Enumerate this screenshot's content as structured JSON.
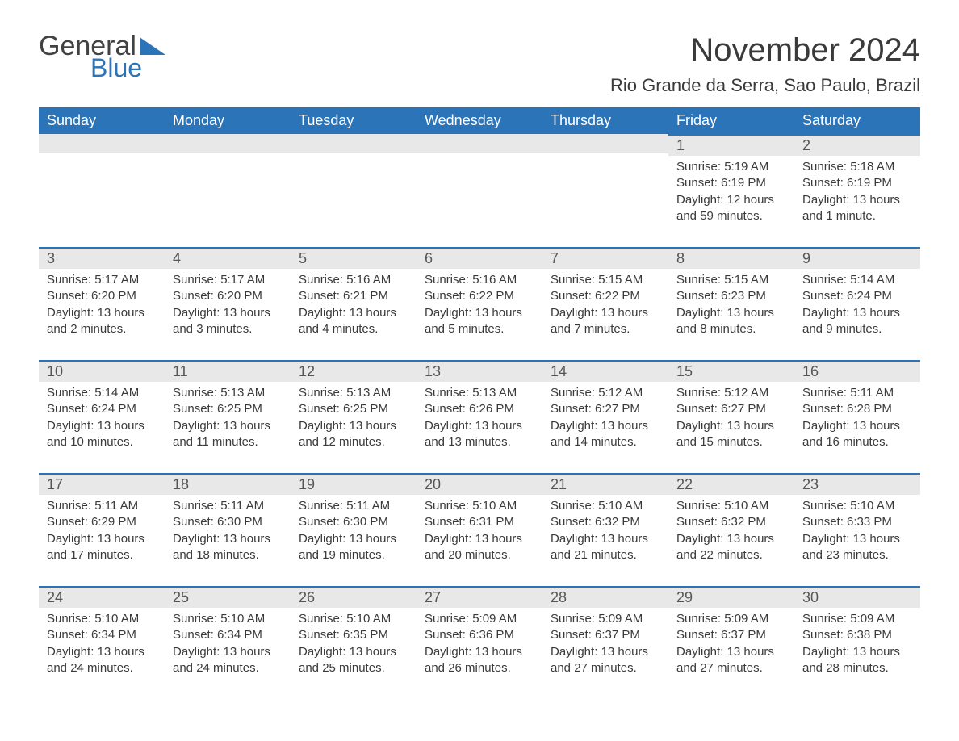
{
  "logo": {
    "text_general": "General",
    "text_blue": "Blue",
    "tri_color": "#2b74b8"
  },
  "title": "November 2024",
  "location": "Rio Grande da Serra, Sao Paulo, Brazil",
  "colors": {
    "header_bg": "#2b74b8",
    "header_text": "#ffffff",
    "daynum_bg": "#e8e8e8",
    "text": "#3a3a3a",
    "row_border": "#2b74b8"
  },
  "typography": {
    "title_fontsize": 40,
    "location_fontsize": 22,
    "dayheader_fontsize": 18,
    "daynum_fontsize": 18,
    "body_fontsize": 15
  },
  "calendar": {
    "type": "table",
    "columns": [
      "Sunday",
      "Monday",
      "Tuesday",
      "Wednesday",
      "Thursday",
      "Friday",
      "Saturday"
    ],
    "weeks": [
      [
        null,
        null,
        null,
        null,
        null,
        {
          "day": "1",
          "sunrise": "Sunrise: 5:19 AM",
          "sunset": "Sunset: 6:19 PM",
          "daylight": "Daylight: 12 hours and 59 minutes."
        },
        {
          "day": "2",
          "sunrise": "Sunrise: 5:18 AM",
          "sunset": "Sunset: 6:19 PM",
          "daylight": "Daylight: 13 hours and 1 minute."
        }
      ],
      [
        {
          "day": "3",
          "sunrise": "Sunrise: 5:17 AM",
          "sunset": "Sunset: 6:20 PM",
          "daylight": "Daylight: 13 hours and 2 minutes."
        },
        {
          "day": "4",
          "sunrise": "Sunrise: 5:17 AM",
          "sunset": "Sunset: 6:20 PM",
          "daylight": "Daylight: 13 hours and 3 minutes."
        },
        {
          "day": "5",
          "sunrise": "Sunrise: 5:16 AM",
          "sunset": "Sunset: 6:21 PM",
          "daylight": "Daylight: 13 hours and 4 minutes."
        },
        {
          "day": "6",
          "sunrise": "Sunrise: 5:16 AM",
          "sunset": "Sunset: 6:22 PM",
          "daylight": "Daylight: 13 hours and 5 minutes."
        },
        {
          "day": "7",
          "sunrise": "Sunrise: 5:15 AM",
          "sunset": "Sunset: 6:22 PM",
          "daylight": "Daylight: 13 hours and 7 minutes."
        },
        {
          "day": "8",
          "sunrise": "Sunrise: 5:15 AM",
          "sunset": "Sunset: 6:23 PM",
          "daylight": "Daylight: 13 hours and 8 minutes."
        },
        {
          "day": "9",
          "sunrise": "Sunrise: 5:14 AM",
          "sunset": "Sunset: 6:24 PM",
          "daylight": "Daylight: 13 hours and 9 minutes."
        }
      ],
      [
        {
          "day": "10",
          "sunrise": "Sunrise: 5:14 AM",
          "sunset": "Sunset: 6:24 PM",
          "daylight": "Daylight: 13 hours and 10 minutes."
        },
        {
          "day": "11",
          "sunrise": "Sunrise: 5:13 AM",
          "sunset": "Sunset: 6:25 PM",
          "daylight": "Daylight: 13 hours and 11 minutes."
        },
        {
          "day": "12",
          "sunrise": "Sunrise: 5:13 AM",
          "sunset": "Sunset: 6:25 PM",
          "daylight": "Daylight: 13 hours and 12 minutes."
        },
        {
          "day": "13",
          "sunrise": "Sunrise: 5:13 AM",
          "sunset": "Sunset: 6:26 PM",
          "daylight": "Daylight: 13 hours and 13 minutes."
        },
        {
          "day": "14",
          "sunrise": "Sunrise: 5:12 AM",
          "sunset": "Sunset: 6:27 PM",
          "daylight": "Daylight: 13 hours and 14 minutes."
        },
        {
          "day": "15",
          "sunrise": "Sunrise: 5:12 AM",
          "sunset": "Sunset: 6:27 PM",
          "daylight": "Daylight: 13 hours and 15 minutes."
        },
        {
          "day": "16",
          "sunrise": "Sunrise: 5:11 AM",
          "sunset": "Sunset: 6:28 PM",
          "daylight": "Daylight: 13 hours and 16 minutes."
        }
      ],
      [
        {
          "day": "17",
          "sunrise": "Sunrise: 5:11 AM",
          "sunset": "Sunset: 6:29 PM",
          "daylight": "Daylight: 13 hours and 17 minutes."
        },
        {
          "day": "18",
          "sunrise": "Sunrise: 5:11 AM",
          "sunset": "Sunset: 6:30 PM",
          "daylight": "Daylight: 13 hours and 18 minutes."
        },
        {
          "day": "19",
          "sunrise": "Sunrise: 5:11 AM",
          "sunset": "Sunset: 6:30 PM",
          "daylight": "Daylight: 13 hours and 19 minutes."
        },
        {
          "day": "20",
          "sunrise": "Sunrise: 5:10 AM",
          "sunset": "Sunset: 6:31 PM",
          "daylight": "Daylight: 13 hours and 20 minutes."
        },
        {
          "day": "21",
          "sunrise": "Sunrise: 5:10 AM",
          "sunset": "Sunset: 6:32 PM",
          "daylight": "Daylight: 13 hours and 21 minutes."
        },
        {
          "day": "22",
          "sunrise": "Sunrise: 5:10 AM",
          "sunset": "Sunset: 6:32 PM",
          "daylight": "Daylight: 13 hours and 22 minutes."
        },
        {
          "day": "23",
          "sunrise": "Sunrise: 5:10 AM",
          "sunset": "Sunset: 6:33 PM",
          "daylight": "Daylight: 13 hours and 23 minutes."
        }
      ],
      [
        {
          "day": "24",
          "sunrise": "Sunrise: 5:10 AM",
          "sunset": "Sunset: 6:34 PM",
          "daylight": "Daylight: 13 hours and 24 minutes."
        },
        {
          "day": "25",
          "sunrise": "Sunrise: 5:10 AM",
          "sunset": "Sunset: 6:34 PM",
          "daylight": "Daylight: 13 hours and 24 minutes."
        },
        {
          "day": "26",
          "sunrise": "Sunrise: 5:10 AM",
          "sunset": "Sunset: 6:35 PM",
          "daylight": "Daylight: 13 hours and 25 minutes."
        },
        {
          "day": "27",
          "sunrise": "Sunrise: 5:09 AM",
          "sunset": "Sunset: 6:36 PM",
          "daylight": "Daylight: 13 hours and 26 minutes."
        },
        {
          "day": "28",
          "sunrise": "Sunrise: 5:09 AM",
          "sunset": "Sunset: 6:37 PM",
          "daylight": "Daylight: 13 hours and 27 minutes."
        },
        {
          "day": "29",
          "sunrise": "Sunrise: 5:09 AM",
          "sunset": "Sunset: 6:37 PM",
          "daylight": "Daylight: 13 hours and 27 minutes."
        },
        {
          "day": "30",
          "sunrise": "Sunrise: 5:09 AM",
          "sunset": "Sunset: 6:38 PM",
          "daylight": "Daylight: 13 hours and 28 minutes."
        }
      ]
    ]
  }
}
